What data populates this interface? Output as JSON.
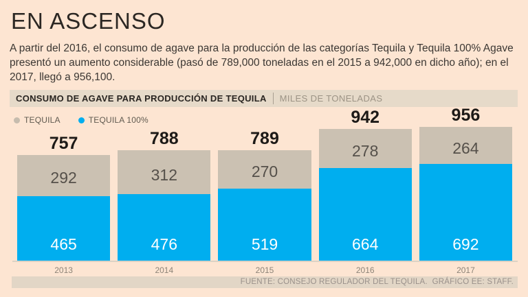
{
  "page": {
    "title": "EN ASCENSO",
    "intro": "A partir del 2016, el consumo de agave para la producción de las categorías Tequila y Tequila 100% Agave presentó un aumento considerable (pasó de 789,000 toneladas en el 2015 a 942,000 en dicho año); en el 2017, llegó a 956,100."
  },
  "chart_header": {
    "title": "CONSUMO DE AGAVE PARA PRODUCCIÓN DE TEQUILA",
    "units": "MILES DE TONELADAS"
  },
  "legend": [
    {
      "label": "TEQUILA",
      "color": "#c6bcae"
    },
    {
      "label": "TEQUILA 100%",
      "color": "#00aeef"
    }
  ],
  "chart_data": {
    "type": "bar",
    "stacked": true,
    "title": "CONSUMO DE AGAVE PARA PRODUCCIÓN DE TEQUILA",
    "ylabel": "MILES DE TONELADAS",
    "categories": [
      "2013",
      "2014",
      "2015",
      "2016",
      "2017"
    ],
    "series": [
      {
        "name": "TEQUILA 100%",
        "color": "#00aeef",
        "values": [
          465,
          476,
          519,
          664,
          692
        ]
      },
      {
        "name": "TEQUILA",
        "color": "#cbc1b2",
        "values": [
          292,
          312,
          270,
          278,
          264
        ]
      }
    ],
    "totals": [
      757,
      788,
      789,
      942,
      956
    ],
    "ylim": [
      0,
      1000
    ],
    "grid": false,
    "legend_position": "top-left"
  },
  "footer": {
    "source": "FUENTE: CONSEJO REGULADOR DEL TEQUILA.  GRÁFICO EE: STAFF."
  },
  "colors": {
    "background": "#fde5d2",
    "header_band": "#e6dac9",
    "footer_band": "#e2d6c6",
    "baseline": "#dcd2c4",
    "title_text": "#2b2723",
    "total_text": "#1d1a17",
    "gray_value_text": "#55504a",
    "blue_value_text": "#ffffff",
    "year_text": "#8d8478"
  }
}
